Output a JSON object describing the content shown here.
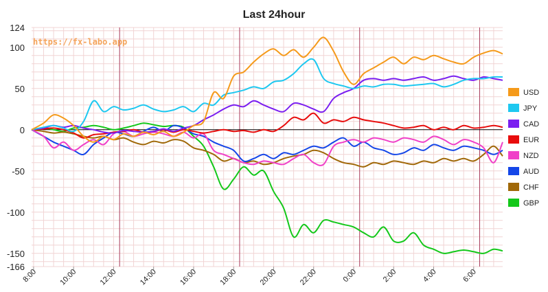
{
  "chart_data": {
    "type": "line",
    "title": "Last 24hour",
    "watermark": "https://fx-labo.app",
    "xlabel": "",
    "ylabel": "",
    "ylim": [
      -166,
      124
    ],
    "y_ticks": [
      124,
      100,
      50,
      0,
      -50,
      -100,
      -150,
      -166
    ],
    "x_ticks": [
      "8:00",
      "10:00",
      "12:00",
      "14:00",
      "16:00",
      "18:00",
      "20:00",
      "22:00",
      "0:00",
      "2:00",
      "4:00",
      "6:00"
    ],
    "x_tick_hours": [
      0,
      2,
      4,
      6,
      8,
      10,
      12,
      14,
      16,
      18,
      20,
      22
    ],
    "x_range_hours": [
      -0.1,
      23.45
    ],
    "vlines_hours": [
      4.3,
      10.3,
      16.3,
      22.3
    ],
    "grid": true,
    "legend_position": "right",
    "x": [
      -0.1,
      0.5,
      1,
      1.5,
      2,
      2.5,
      3,
      3.5,
      4,
      4.5,
      5,
      5.5,
      6,
      6.5,
      7,
      7.5,
      8,
      8.5,
      9,
      9.5,
      10,
      10.5,
      11,
      11.5,
      12,
      12.5,
      13,
      13.5,
      14,
      14.5,
      15,
      15.5,
      16,
      16.5,
      17,
      17.5,
      18,
      18.5,
      19,
      19.5,
      20,
      20.5,
      21,
      21.5,
      22,
      22.5,
      23,
      23.45
    ],
    "series": [
      {
        "name": "USD",
        "color": "#f59a1a",
        "values": [
          0,
          8,
          18,
          14,
          5,
          -8,
          -15,
          -8,
          -12,
          -5,
          -8,
          -3,
          -6,
          -2,
          -8,
          -3,
          5,
          10,
          45,
          38,
          65,
          70,
          82,
          92,
          98,
          90,
          97,
          88,
          100,
          112,
          95,
          70,
          55,
          68,
          75,
          82,
          88,
          80,
          88,
          85,
          90,
          86,
          82,
          80,
          88,
          93,
          96,
          92
        ]
      },
      {
        "name": "JPY",
        "color": "#1ec8f0",
        "values": [
          0,
          3,
          5,
          2,
          -2,
          10,
          35,
          22,
          28,
          24,
          26,
          30,
          25,
          22,
          24,
          28,
          22,
          32,
          30,
          42,
          45,
          48,
          52,
          50,
          58,
          60,
          68,
          80,
          85,
          62,
          56,
          53,
          50,
          53,
          52,
          55,
          55,
          53,
          54,
          55,
          56,
          52,
          55,
          60,
          62,
          62,
          64,
          64
        ]
      },
      {
        "name": "CAD",
        "color": "#7a1ef0",
        "values": [
          0,
          2,
          5,
          3,
          5,
          2,
          0,
          -3,
          -4,
          -1,
          -2,
          -3,
          -2,
          1,
          -2,
          2,
          5,
          12,
          18,
          25,
          30,
          28,
          35,
          30,
          25,
          22,
          32,
          30,
          25,
          22,
          38,
          45,
          50,
          60,
          62,
          60,
          62,
          60,
          62,
          64,
          60,
          62,
          65,
          62,
          60,
          64,
          62,
          60
        ]
      },
      {
        "name": "EUR",
        "color": "#e80c0c",
        "values": [
          0,
          1,
          2,
          0,
          -4,
          -10,
          -6,
          -5,
          -3,
          -2,
          0,
          -3,
          -2,
          0,
          -3,
          0,
          -2,
          -4,
          -2,
          0,
          -2,
          -1,
          -3,
          0,
          -2,
          5,
          15,
          12,
          20,
          8,
          12,
          10,
          15,
          12,
          10,
          8,
          5,
          2,
          3,
          5,
          0,
          3,
          0,
          5,
          2,
          3,
          5,
          3
        ]
      },
      {
        "name": "NZD",
        "color": "#f040c8",
        "values": [
          0,
          -8,
          -22,
          -15,
          -25,
          -18,
          -12,
          -18,
          -5,
          -2,
          -8,
          -5,
          -3,
          -5,
          -8,
          -3,
          -10,
          -5,
          -25,
          -30,
          -35,
          -40,
          -42,
          -38,
          -40,
          -42,
          -35,
          -30,
          -40,
          -42,
          -20,
          -15,
          -12,
          -15,
          -10,
          -12,
          -15,
          -10,
          -12,
          -15,
          -8,
          -12,
          -18,
          -12,
          -15,
          -22,
          -40,
          -15
        ]
      },
      {
        "name": "AUD",
        "color": "#1446e8",
        "values": [
          0,
          -8,
          -15,
          -20,
          -25,
          -30,
          -18,
          -10,
          -3,
          -5,
          -8,
          -2,
          3,
          -2,
          5,
          2,
          -5,
          -8,
          -15,
          -20,
          -25,
          -38,
          -35,
          -30,
          -35,
          -28,
          -30,
          -25,
          -20,
          -22,
          -15,
          -10,
          -20,
          -15,
          -22,
          -25,
          -30,
          -28,
          -22,
          -25,
          -18,
          -22,
          -25,
          -20,
          -22,
          -25,
          -30,
          -25
        ]
      },
      {
        "name": "CHF",
        "color": "#a06808",
        "values": [
          0,
          -2,
          -4,
          -3,
          -5,
          -8,
          -10,
          -8,
          -12,
          -10,
          -15,
          -18,
          -14,
          -16,
          -12,
          -14,
          -22,
          -25,
          -30,
          -38,
          -35,
          -40,
          -38,
          -42,
          -40,
          -35,
          -32,
          -30,
          -25,
          -28,
          -35,
          -40,
          -42,
          -45,
          -40,
          -42,
          -38,
          -40,
          -42,
          -38,
          -40,
          -35,
          -38,
          -35,
          -38,
          -30,
          -20,
          -32
        ]
      },
      {
        "name": "GBP",
        "color": "#14c81a",
        "values": [
          0,
          2,
          0,
          -2,
          2,
          3,
          5,
          3,
          0,
          2,
          5,
          8,
          6,
          4,
          5,
          3,
          -8,
          -20,
          -45,
          -72,
          -60,
          -45,
          -55,
          -50,
          -75,
          -95,
          -130,
          -115,
          -125,
          -110,
          -112,
          -115,
          -118,
          -125,
          -130,
          -118,
          -135,
          -135,
          -125,
          -140,
          -145,
          -150,
          -148,
          -146,
          -148,
          -150,
          -145,
          -147
        ]
      }
    ]
  }
}
